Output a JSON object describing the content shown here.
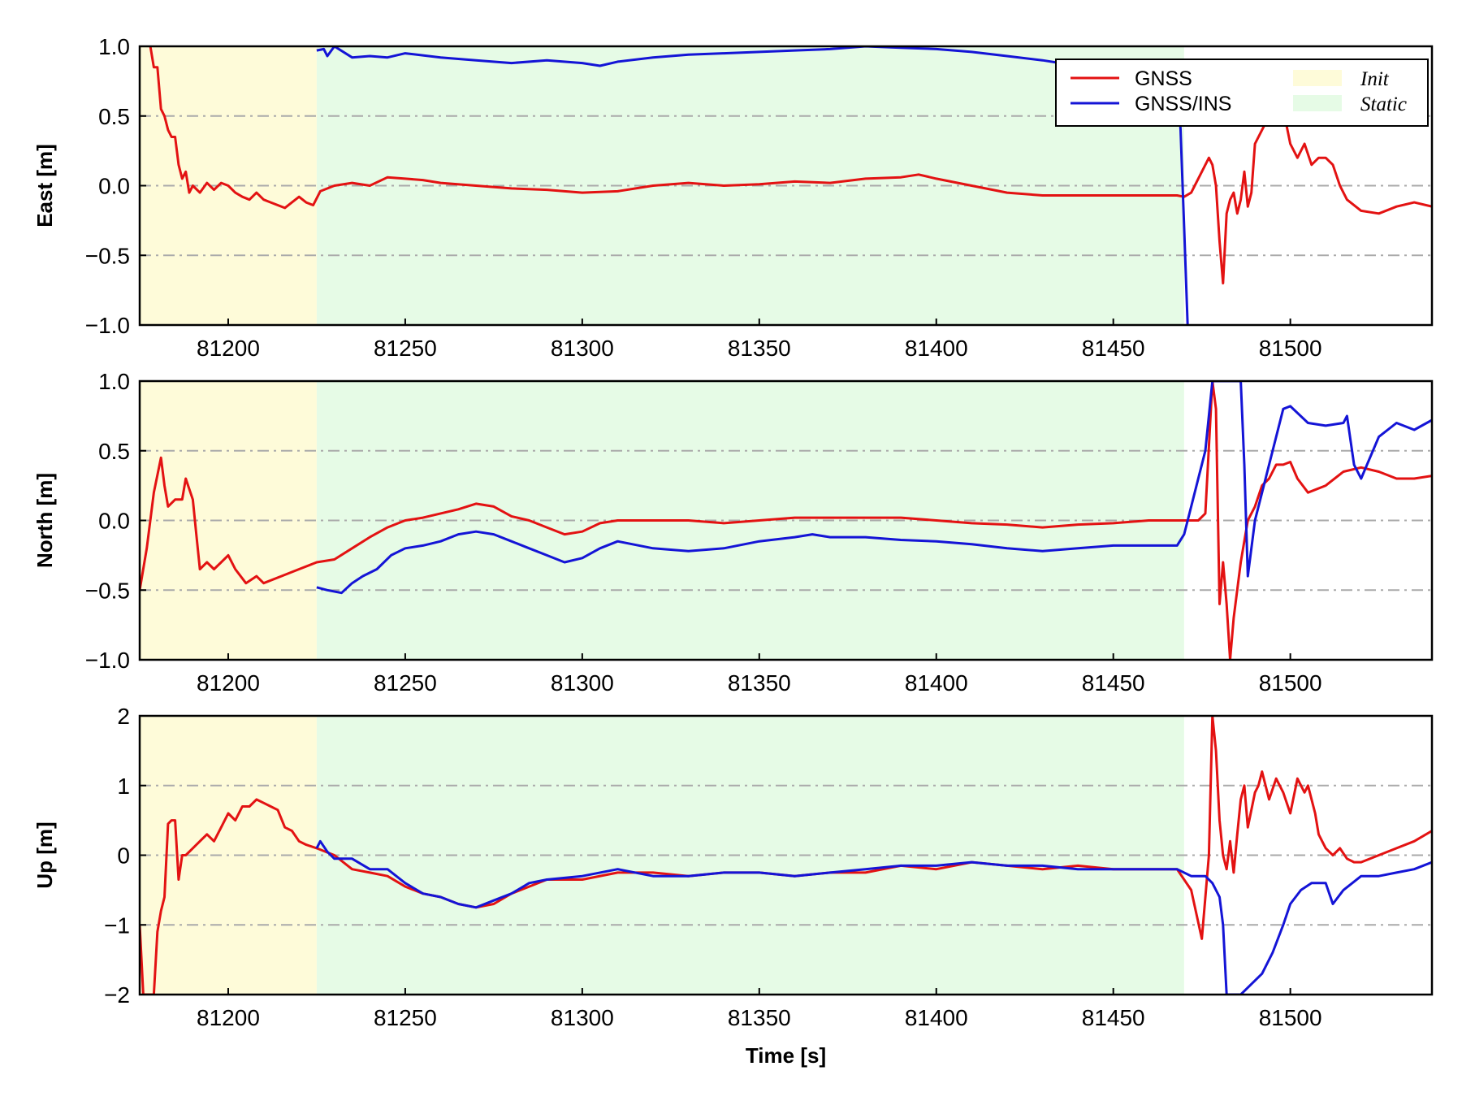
{
  "colors": {
    "gnss": "#e31212",
    "gnss_ins": "#1414d6",
    "init": "#fefbd9",
    "static": "#e6fbe6",
    "grid": "#aaaaaa"
  },
  "legend": {
    "gnss": "GNSS",
    "gnss_ins": "GNSS/INS",
    "init": "Init",
    "static": "Static"
  },
  "chart_data": [
    {
      "type": "line",
      "ylabel": "East [m]",
      "xlabel": "",
      "xlim": [
        81175,
        81540
      ],
      "ylim": [
        -1.0,
        1.0
      ],
      "xticks": [
        81200,
        81250,
        81300,
        81350,
        81400,
        81450,
        81500
      ],
      "yticks": [
        -1.0,
        -0.5,
        0.0,
        0.5,
        1.0
      ],
      "ytick_labels": [
        "−1.0",
        "−0.5",
        "0.0",
        "0.5",
        "1.0"
      ],
      "spans": [
        {
          "name": "Init",
          "from": 81175,
          "to": 81225
        },
        {
          "name": "Static",
          "from": 81225,
          "to": 81470
        }
      ],
      "grid": "horizontal dash-dot",
      "legend_position": "top-right",
      "series": [
        {
          "name": "GNSS",
          "x": [
            81178,
            81179,
            81180,
            81181,
            81182,
            81183,
            81184,
            81185,
            81186,
            81187,
            81188,
            81189,
            81190,
            81192,
            81194,
            81196,
            81198,
            81200,
            81202,
            81204,
            81206,
            81208,
            81210,
            81212,
            81214,
            81216,
            81218,
            81220,
            81222,
            81224,
            81226,
            81230,
            81235,
            81240,
            81245,
            81250,
            81255,
            81260,
            81270,
            81280,
            81290,
            81300,
            81310,
            81320,
            81330,
            81340,
            81350,
            81360,
            81370,
            81380,
            81390,
            81395,
            81400,
            81410,
            81420,
            81430,
            81440,
            81450,
            81460,
            81468,
            81470,
            81472,
            81475,
            81477,
            81478,
            81479,
            81480,
            81481,
            81482,
            81483,
            81484,
            81485,
            81486,
            81487,
            81488,
            81489,
            81490,
            81492,
            81494,
            81496,
            81498,
            81500,
            81502,
            81504,
            81506,
            81508,
            81510,
            81512,
            81514,
            81516,
            81520,
            81525,
            81530,
            81535,
            81540
          ],
          "y": [
            1.0,
            0.85,
            0.85,
            0.55,
            0.5,
            0.4,
            0.35,
            0.35,
            0.15,
            0.05,
            0.1,
            -0.05,
            0.0,
            -0.05,
            0.02,
            -0.03,
            0.02,
            0.0,
            -0.05,
            -0.08,
            -0.1,
            -0.05,
            -0.1,
            -0.12,
            -0.14,
            -0.16,
            -0.12,
            -0.08,
            -0.12,
            -0.14,
            -0.04,
            0.0,
            0.02,
            0.0,
            0.06,
            0.05,
            0.04,
            0.02,
            0.0,
            -0.02,
            -0.03,
            -0.05,
            -0.04,
            0.0,
            0.02,
            0.0,
            0.01,
            0.03,
            0.02,
            0.05,
            0.06,
            0.08,
            0.05,
            0.0,
            -0.05,
            -0.07,
            -0.07,
            -0.07,
            -0.07,
            -0.07,
            -0.08,
            -0.05,
            0.1,
            0.2,
            0.15,
            0.0,
            -0.4,
            -0.7,
            -0.2,
            -0.1,
            -0.05,
            -0.2,
            -0.1,
            0.1,
            -0.15,
            -0.05,
            0.3,
            0.4,
            0.5,
            0.5,
            0.55,
            0.3,
            0.2,
            0.3,
            0.15,
            0.2,
            0.2,
            0.15,
            0.0,
            -0.1,
            -0.18,
            -0.2,
            -0.15,
            -0.12,
            -0.15
          ]
        },
        {
          "name": "GNSS/INS",
          "x": [
            81225,
            81227,
            81228,
            81230,
            81235,
            81240,
            81245,
            81250,
            81260,
            81270,
            81280,
            81290,
            81300,
            81305,
            81310,
            81320,
            81330,
            81340,
            81350,
            81360,
            81370,
            81380,
            81390,
            81400,
            81410,
            81420,
            81430,
            81435,
            81440,
            81460,
            81468,
            81469,
            81470,
            81471
          ],
          "y": [
            0.97,
            0.98,
            0.93,
            1.0,
            0.92,
            0.93,
            0.92,
            0.95,
            0.92,
            0.9,
            0.88,
            0.9,
            0.88,
            0.86,
            0.89,
            0.92,
            0.94,
            0.95,
            0.96,
            0.97,
            0.98,
            1.0,
            0.99,
            0.98,
            0.96,
            0.93,
            0.9,
            0.88,
            0.89,
            0.9,
            0.85,
            0.4,
            -0.3,
            -1.0
          ]
        }
      ]
    },
    {
      "type": "line",
      "ylabel": "North [m]",
      "xlabel": "",
      "xlim": [
        81175,
        81540
      ],
      "ylim": [
        -1.0,
        1.0
      ],
      "xticks": [
        81200,
        81250,
        81300,
        81350,
        81400,
        81450,
        81500
      ],
      "yticks": [
        -1.0,
        -0.5,
        0.0,
        0.5,
        1.0
      ],
      "ytick_labels": [
        "−1.0",
        "−0.5",
        "0.0",
        "0.5",
        "1.0"
      ],
      "spans": [
        {
          "name": "Init",
          "from": 81175,
          "to": 81225
        },
        {
          "name": "Static",
          "from": 81225,
          "to": 81470
        }
      ],
      "grid": "horizontal dash-dot",
      "series": [
        {
          "name": "GNSS",
          "x": [
            81175,
            81177,
            81179,
            81181,
            81182,
            81183,
            81185,
            81187,
            81188,
            81190,
            81191,
            81192,
            81194,
            81196,
            81198,
            81200,
            81202,
            81205,
            81208,
            81210,
            81215,
            81220,
            81225,
            81230,
            81235,
            81240,
            81245,
            81250,
            81255,
            81260,
            81265,
            81270,
            81275,
            81280,
            81285,
            81290,
            81295,
            81300,
            81305,
            81310,
            81320,
            81330,
            81340,
            81350,
            81360,
            81370,
            81380,
            81390,
            81400,
            81410,
            81420,
            81430,
            81440,
            81450,
            81460,
            81468,
            81470,
            81472,
            81474,
            81476,
            81478,
            81479,
            81480,
            81481,
            81482,
            81483,
            81484,
            81486,
            81488,
            81490,
            81492,
            81494,
            81496,
            81498,
            81500,
            81502,
            81505,
            81510,
            81515,
            81520,
            81525,
            81530,
            81535,
            81540
          ],
          "y": [
            -0.5,
            -0.2,
            0.2,
            0.45,
            0.25,
            0.1,
            0.15,
            0.15,
            0.3,
            0.15,
            -0.1,
            -0.35,
            -0.3,
            -0.35,
            -0.3,
            -0.25,
            -0.35,
            -0.45,
            -0.4,
            -0.45,
            -0.4,
            -0.35,
            -0.3,
            -0.28,
            -0.2,
            -0.12,
            -0.05,
            0.0,
            0.02,
            0.05,
            0.08,
            0.12,
            0.1,
            0.03,
            0.0,
            -0.05,
            -0.1,
            -0.08,
            -0.02,
            0.0,
            0.0,
            0.0,
            -0.02,
            0.0,
            0.02,
            0.02,
            0.02,
            0.02,
            0.0,
            -0.02,
            -0.03,
            -0.05,
            -0.03,
            -0.02,
            0.0,
            0.0,
            0.0,
            0.0,
            0.0,
            0.05,
            1.0,
            0.8,
            -0.6,
            -0.3,
            -0.6,
            -1.0,
            -0.7,
            -0.3,
            0.0,
            0.1,
            0.25,
            0.3,
            0.4,
            0.4,
            0.42,
            0.3,
            0.2,
            0.25,
            0.35,
            0.38,
            0.35,
            0.3,
            0.3,
            0.32
          ]
        },
        {
          "name": "GNSS/INS",
          "x": [
            81225,
            81228,
            81232,
            81235,
            81238,
            81242,
            81246,
            81250,
            81255,
            81260,
            81265,
            81270,
            81275,
            81280,
            81285,
            81290,
            81295,
            81300,
            81305,
            81310,
            81320,
            81330,
            81340,
            81350,
            81360,
            81365,
            81370,
            81380,
            81390,
            81400,
            81410,
            81420,
            81430,
            81440,
            81450,
            81460,
            81468,
            81470,
            81472,
            81474,
            81476,
            81478,
            81480,
            81482,
            81484,
            81486,
            81487,
            81488,
            81489,
            81490,
            81492,
            81494,
            81496,
            81498,
            81500,
            81505,
            81510,
            81515,
            81516,
            81518,
            81520,
            81525,
            81530,
            81535,
            81540
          ],
          "y": [
            -0.48,
            -0.5,
            -0.52,
            -0.45,
            -0.4,
            -0.35,
            -0.25,
            -0.2,
            -0.18,
            -0.15,
            -0.1,
            -0.08,
            -0.1,
            -0.15,
            -0.2,
            -0.25,
            -0.3,
            -0.27,
            -0.2,
            -0.15,
            -0.2,
            -0.22,
            -0.2,
            -0.15,
            -0.12,
            -0.1,
            -0.12,
            -0.12,
            -0.14,
            -0.15,
            -0.17,
            -0.2,
            -0.22,
            -0.2,
            -0.18,
            -0.18,
            -0.18,
            -0.1,
            0.1,
            0.3,
            0.5,
            1.0,
            1.0,
            1.0,
            1.0,
            1.0,
            0.4,
            -0.4,
            -0.2,
            0.0,
            0.2,
            0.4,
            0.6,
            0.8,
            0.82,
            0.7,
            0.68,
            0.7,
            0.75,
            0.4,
            0.3,
            0.6,
            0.7,
            0.65,
            0.72
          ]
        }
      ]
    },
    {
      "type": "line",
      "ylabel": "Up [m]",
      "xlabel": "Time [s]",
      "xlim": [
        81175,
        81540
      ],
      "ylim": [
        -2,
        2
      ],
      "xticks": [
        81200,
        81250,
        81300,
        81350,
        81400,
        81450,
        81500
      ],
      "yticks": [
        -2,
        -1,
        0,
        1,
        2
      ],
      "ytick_labels": [
        "−2",
        "−1",
        "0",
        "1",
        "2"
      ],
      "spans": [
        {
          "name": "Init",
          "from": 81175,
          "to": 81225
        },
        {
          "name": "Static",
          "from": 81225,
          "to": 81470
        }
      ],
      "grid": "horizontal dash-dot",
      "series": [
        {
          "name": "GNSS",
          "x": [
            81175,
            81176,
            81177,
            81178,
            81179,
            81180,
            81181,
            81182,
            81183,
            81184,
            81185,
            81186,
            81187,
            81188,
            81190,
            81192,
            81194,
            81196,
            81198,
            81200,
            81202,
            81204,
            81206,
            81208,
            81210,
            81212,
            81214,
            81216,
            81218,
            81220,
            81222,
            81225,
            81230,
            81235,
            81240,
            81245,
            81250,
            81255,
            81260,
            81265,
            81270,
            81275,
            81280,
            81285,
            81290,
            81300,
            81310,
            81320,
            81330,
            81340,
            81350,
            81360,
            81370,
            81380,
            81390,
            81400,
            81410,
            81420,
            81430,
            81440,
            81450,
            81460,
            81468,
            81472,
            81475,
            81477,
            81478,
            81479,
            81480,
            81481,
            81482,
            81483,
            81484,
            81485,
            81486,
            81487,
            81488,
            81490,
            81491,
            81492,
            81494,
            81496,
            81498,
            81500,
            81502,
            81504,
            81505,
            81507,
            81508,
            81510,
            81512,
            81514,
            81516,
            81518,
            81520,
            81525,
            81530,
            81535,
            81540
          ],
          "y": [
            -1.0,
            -2.0,
            -2.0,
            -2.0,
            -2.0,
            -1.1,
            -0.8,
            -0.6,
            0.45,
            0.5,
            0.5,
            -0.35,
            0.0,
            0.0,
            0.1,
            0.2,
            0.3,
            0.2,
            0.4,
            0.6,
            0.5,
            0.7,
            0.7,
            0.8,
            0.75,
            0.7,
            0.65,
            0.4,
            0.35,
            0.2,
            0.15,
            0.1,
            0.0,
            -0.2,
            -0.25,
            -0.3,
            -0.45,
            -0.55,
            -0.6,
            -0.7,
            -0.75,
            -0.7,
            -0.55,
            -0.45,
            -0.35,
            -0.35,
            -0.25,
            -0.25,
            -0.3,
            -0.25,
            -0.25,
            -0.3,
            -0.25,
            -0.25,
            -0.15,
            -0.2,
            -0.1,
            -0.15,
            -0.2,
            -0.15,
            -0.2,
            -0.2,
            -0.2,
            -0.5,
            -1.2,
            0.0,
            2.0,
            1.5,
            0.5,
            0.0,
            -0.2,
            0.2,
            -0.25,
            0.3,
            0.8,
            1.0,
            0.4,
            0.9,
            1.0,
            1.2,
            0.8,
            1.1,
            0.9,
            0.6,
            1.1,
            0.9,
            1.0,
            0.6,
            0.3,
            0.1,
            0.0,
            0.1,
            -0.05,
            -0.1,
            -0.1,
            0.0,
            0.1,
            0.2,
            0.35
          ]
        },
        {
          "name": "GNSS/INS",
          "x": [
            81225,
            81226,
            81228,
            81230,
            81235,
            81240,
            81245,
            81250,
            81255,
            81260,
            81265,
            81270,
            81275,
            81280,
            81285,
            81290,
            81300,
            81310,
            81320,
            81330,
            81340,
            81350,
            81360,
            81370,
            81380,
            81390,
            81400,
            81410,
            81420,
            81430,
            81440,
            81450,
            81460,
            81468,
            81472,
            81476,
            81478,
            81480,
            81481,
            81482,
            81484,
            81486,
            81488,
            81490,
            81492,
            81495,
            81498,
            81500,
            81503,
            81506,
            81510,
            81512,
            81515,
            81520,
            81525,
            81530,
            81535,
            81540
          ],
          "y": [
            0.1,
            0.2,
            0.05,
            -0.05,
            -0.05,
            -0.2,
            -0.2,
            -0.4,
            -0.55,
            -0.6,
            -0.7,
            -0.75,
            -0.65,
            -0.55,
            -0.4,
            -0.35,
            -0.3,
            -0.2,
            -0.3,
            -0.3,
            -0.25,
            -0.25,
            -0.3,
            -0.25,
            -0.2,
            -0.15,
            -0.15,
            -0.1,
            -0.15,
            -0.15,
            -0.2,
            -0.2,
            -0.2,
            -0.2,
            -0.3,
            -0.3,
            -0.4,
            -0.6,
            -1.0,
            -2.0,
            -2.0,
            -2.0,
            -1.9,
            -1.8,
            -1.7,
            -1.4,
            -1.0,
            -0.7,
            -0.5,
            -0.4,
            -0.4,
            -0.7,
            -0.5,
            -0.3,
            -0.3,
            -0.25,
            -0.2,
            -0.1
          ]
        }
      ]
    }
  ]
}
